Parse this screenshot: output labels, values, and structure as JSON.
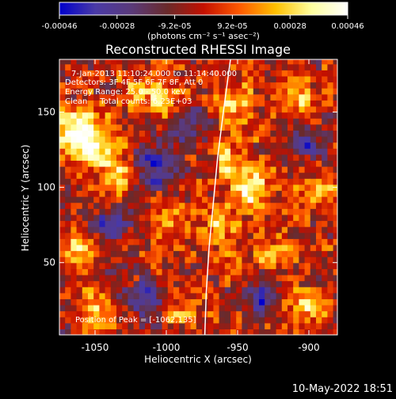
{
  "chart_data": {
    "type": "heatmap",
    "title": "Reconstructed RHESSI Image",
    "xlabel": "Heliocentric X (arcsec)",
    "ylabel": "Heliocentric Y (arcsec)",
    "xlim": [
      -1075,
      -880
    ],
    "ylim": [
      2,
      185
    ],
    "x_ticks": [
      -1050,
      -1000,
      -950,
      -900
    ],
    "y_ticks": [
      50,
      100,
      150
    ],
    "colorbar": {
      "min": -0.00046,
      "max": 0.00046,
      "ticks": [
        "-0.00046",
        "-0.00028",
        "-9.2e-05",
        "9.2e-05",
        "0.00028",
        "0.00046"
      ],
      "unit_label": "(photons cm⁻² s⁻¹ asec⁻²)",
      "colors": [
        "#0000cc",
        "#4a3aa6",
        "#5a3a7a",
        "#6a2a2a",
        "#c41000",
        "#ff5a00",
        "#ffc000",
        "#ffffa0",
        "#ffffff"
      ]
    },
    "annotations": {
      "time_range": "7-Jan-2013 11:10:24.000 to 11:14:40.000",
      "detectors": "Detectors: 3F 4F 5F 6F 7F 8F, Att 0",
      "energy_range": "Energy Range: 25.0 - 50.0 keV",
      "clean_counts": "Clean     Total counts: 6.23E+03",
      "peak_position": "Position of Peak = [-1062,135]"
    },
    "peak": {
      "x": -1062,
      "y": 135
    },
    "limb": [
      [
        -973,
        2
      ],
      [
        -972,
        30
      ],
      [
        -970,
        60
      ],
      [
        -967,
        90
      ],
      [
        -964,
        120
      ],
      [
        -960,
        150
      ],
      [
        -955,
        185
      ]
    ],
    "blobs": [
      {
        "x": -1063,
        "y": 137,
        "amp": 1.0,
        "sigma": 10
      },
      {
        "x": -1045,
        "y": 128,
        "amp": 0.7,
        "sigma": 12
      },
      {
        "x": -1032,
        "y": 105,
        "amp": 0.55,
        "sigma": 9
      },
      {
        "x": -1000,
        "y": 158,
        "amp": 0.55,
        "sigma": 9
      },
      {
        "x": -1018,
        "y": 165,
        "amp": 0.45,
        "sigma": 7
      },
      {
        "x": -952,
        "y": 152,
        "amp": 0.65,
        "sigma": 10
      },
      {
        "x": -940,
        "y": 100,
        "amp": 0.75,
        "sigma": 10
      },
      {
        "x": -957,
        "y": 118,
        "amp": 0.55,
        "sigma": 8
      },
      {
        "x": -962,
        "y": 75,
        "amp": 0.6,
        "sigma": 9
      },
      {
        "x": -908,
        "y": 160,
        "amp": 0.55,
        "sigma": 8
      },
      {
        "x": -892,
        "y": 95,
        "amp": 0.55,
        "sigma": 9
      },
      {
        "x": -1000,
        "y": 80,
        "amp": 0.45,
        "sigma": 9
      },
      {
        "x": -1060,
        "y": 60,
        "amp": 0.55,
        "sigma": 9
      },
      {
        "x": -1050,
        "y": 20,
        "amp": 0.45,
        "sigma": 8
      },
      {
        "x": -990,
        "y": 20,
        "amp": 0.45,
        "sigma": 8
      },
      {
        "x": -925,
        "y": 55,
        "amp": 0.45,
        "sigma": 9
      },
      {
        "x": -902,
        "y": 20,
        "amp": 0.55,
        "sigma": 8
      },
      {
        "x": -1040,
        "y": 75,
        "amp": -0.7,
        "sigma": 11
      },
      {
        "x": -1012,
        "y": 115,
        "amp": -0.75,
        "sigma": 12
      },
      {
        "x": -1015,
        "y": 25,
        "amp": -0.8,
        "sigma": 10
      },
      {
        "x": -935,
        "y": 28,
        "amp": -0.65,
        "sigma": 9
      },
      {
        "x": -900,
        "y": 130,
        "amp": -0.55,
        "sigma": 10
      },
      {
        "x": -980,
        "y": 140,
        "amp": -0.55,
        "sigma": 10
      }
    ],
    "grid": false
  },
  "footer": {
    "date": "10-May-2022 18:51"
  }
}
